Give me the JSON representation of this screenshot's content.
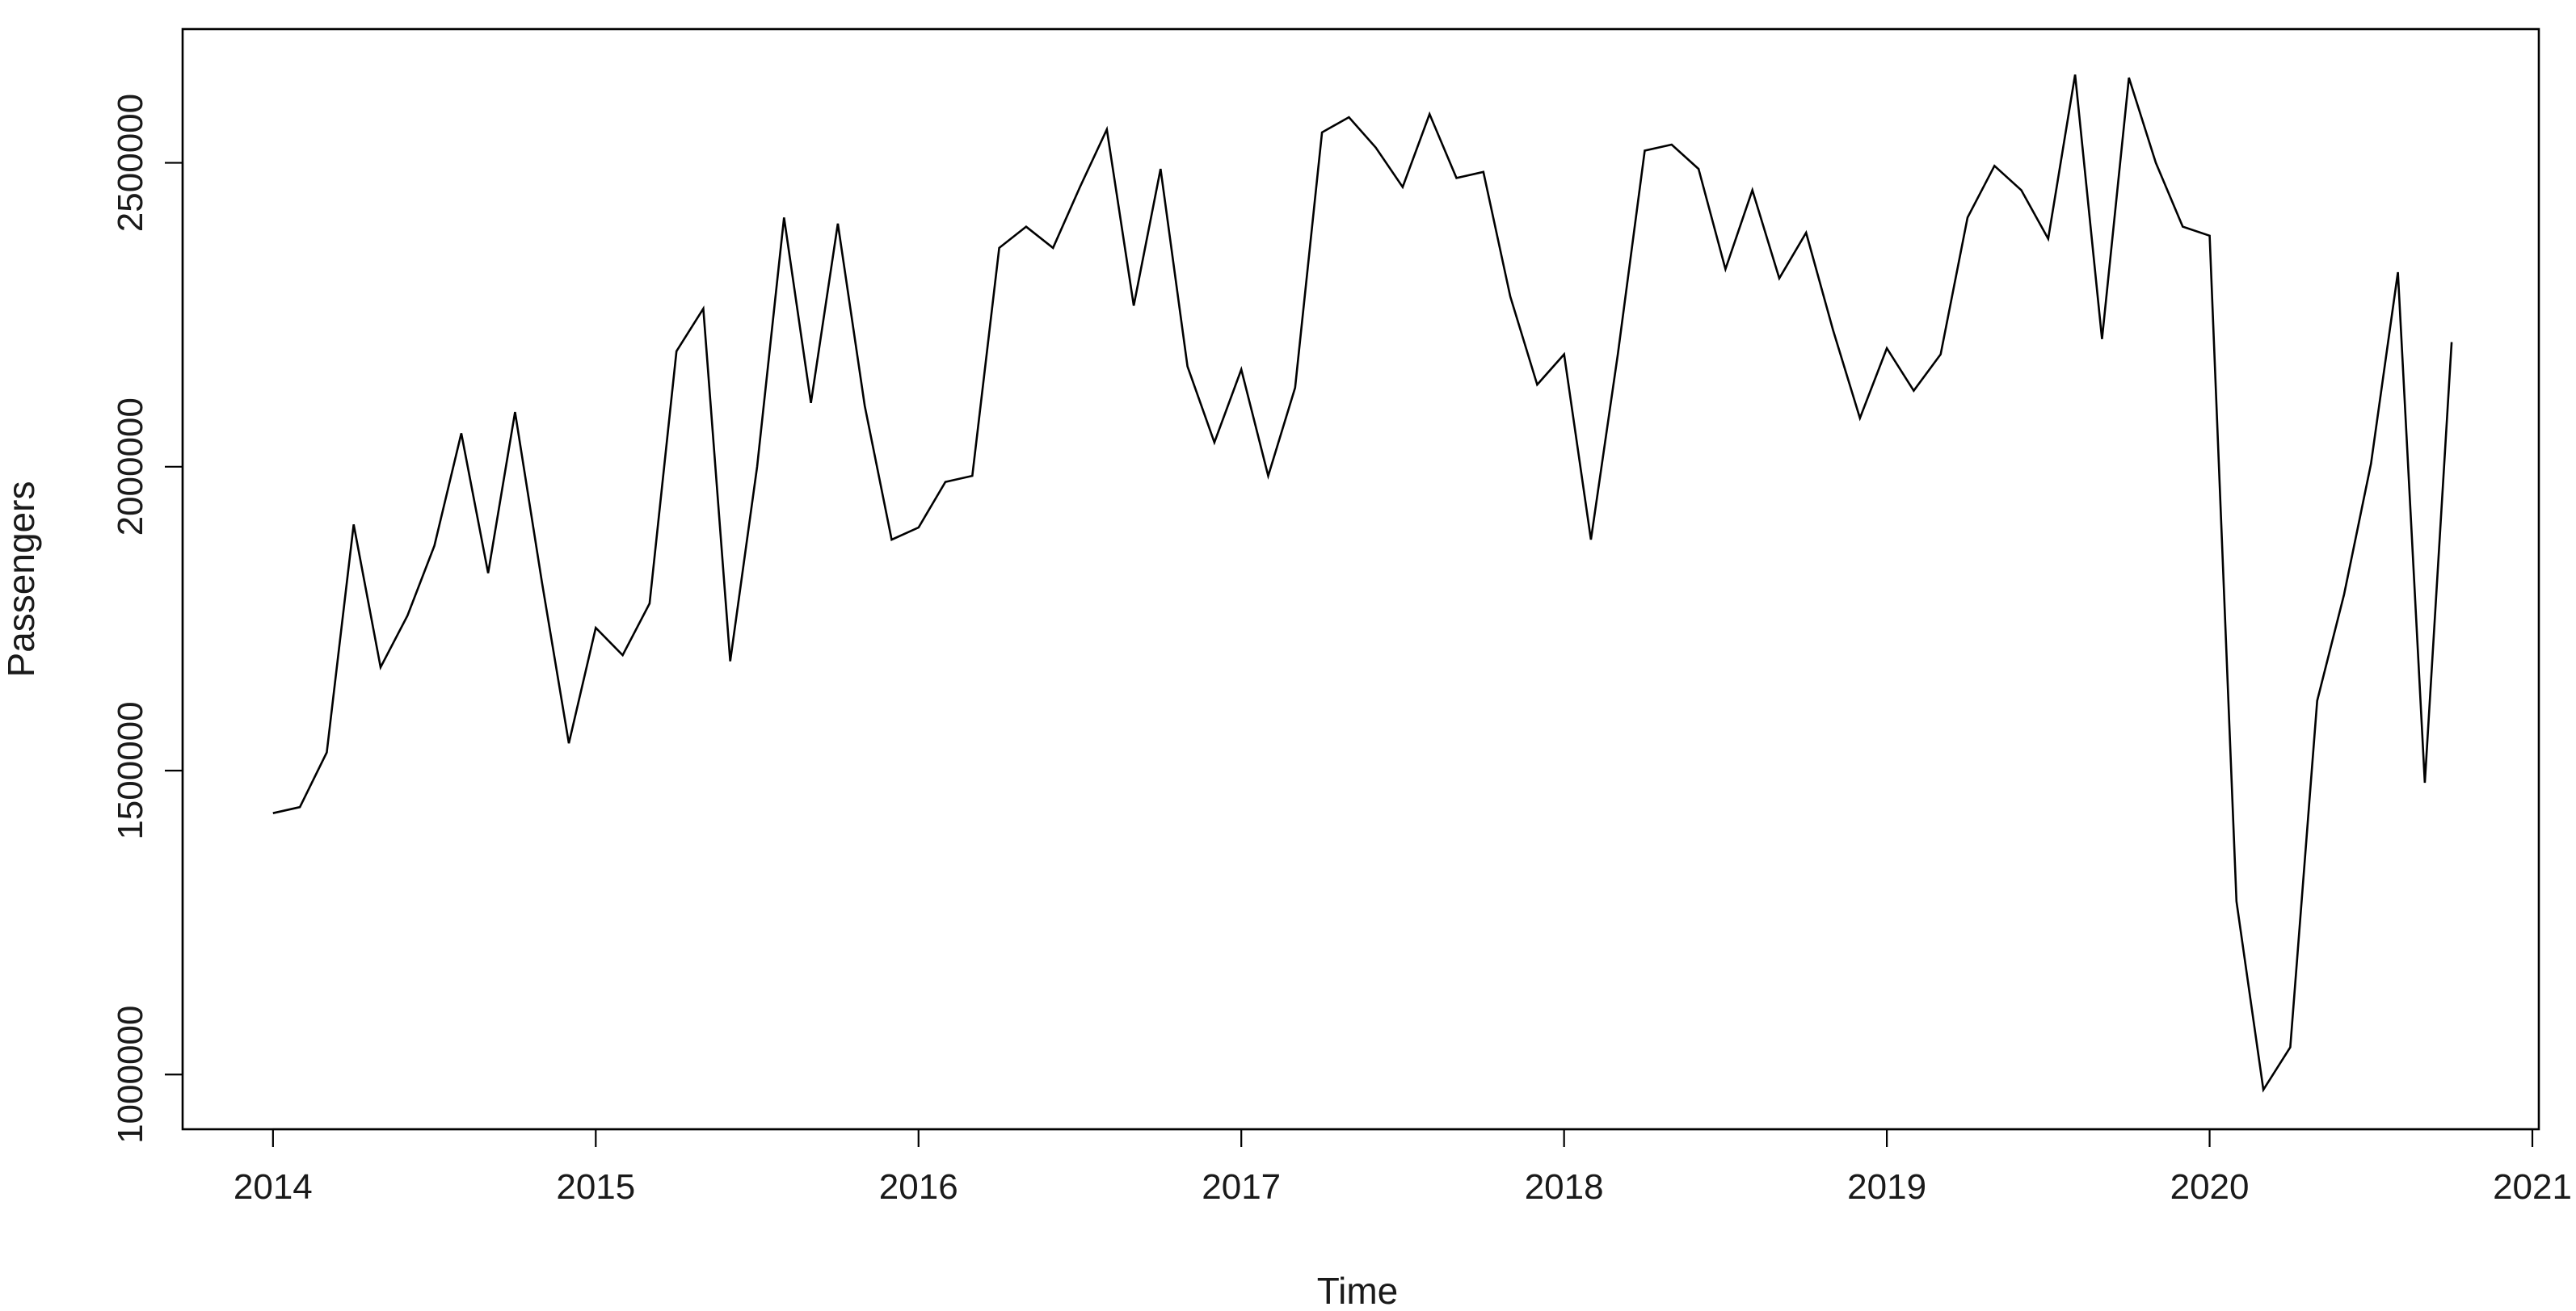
{
  "chart_data": {
    "type": "line",
    "title": "",
    "xlabel": "Time",
    "ylabel": "Passengers",
    "xlim": [
      2013.72,
      2021.02
    ],
    "ylim": [
      910000,
      2720000
    ],
    "grid": false,
    "x_ticks": [
      2014,
      2015,
      2016,
      2017,
      2018,
      2019,
      2020,
      2021
    ],
    "x_tick_labels": [
      "2014",
      "2015",
      "2016",
      "2017",
      "2018",
      "2019",
      "2020",
      "2021"
    ],
    "y_ticks": [
      1000000,
      1500000,
      2000000,
      2500000
    ],
    "y_tick_labels": [
      "1000000",
      "1500000",
      "2000000",
      "2500000"
    ],
    "series": [
      {
        "x_start": 2014,
        "frequency": 12,
        "values": [
          1430000,
          1440000,
          1530000,
          1905000,
          1670000,
          1755000,
          1870000,
          2055000,
          1825000,
          2090000,
          1810000,
          1545000,
          1735000,
          1690000,
          1775000,
          2190000,
          2260000,
          1680000,
          2000000,
          2410000,
          2105000,
          2400000,
          2100000,
          1880000,
          1900000,
          1975000,
          1985000,
          2360000,
          2395000,
          2360000,
          2460000,
          2555000,
          2265000,
          2490000,
          2165000,
          2040000,
          2160000,
          1985000,
          2130000,
          2550000,
          2575000,
          2525000,
          2460000,
          2580000,
          2475000,
          2485000,
          2280000,
          2135000,
          2185000,
          1880000,
          2185000,
          2520000,
          2530000,
          2490000,
          2325000,
          2455000,
          2310000,
          2385000,
          2225000,
          2080000,
          2195000,
          2125000,
          2185000,
          2410000,
          2495000,
          2455000,
          2375000,
          2645000,
          2210000,
          2640000,
          2500000,
          2395000,
          2380000,
          1285000,
          975000,
          1045000,
          1615000,
          1790000,
          2005000,
          2320000,
          1480000,
          2205000
        ]
      }
    ]
  }
}
